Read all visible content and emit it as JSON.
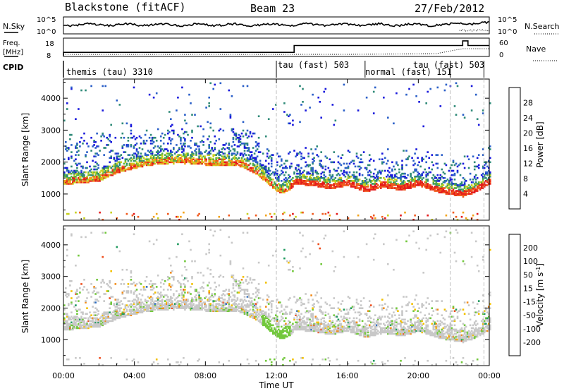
{
  "chart_data": {
    "type": "heatmap",
    "title": {
      "station": "Blackstone (fitACF)",
      "beam": "Beam 23",
      "date": "27/Feb/2012"
    },
    "xlabel": "Time UT",
    "x_ticks": [
      "00:00",
      "04:00",
      "08:00",
      "12:00",
      "16:00",
      "20:00",
      "00:00"
    ],
    "xlim_hours": [
      0,
      24
    ],
    "noise_panel": {
      "left_label": "N.Sky",
      "right_label": "N.Search",
      "left_ticks": [
        "10^5",
        "10^0"
      ],
      "right_ticks": [
        "10^5",
        "10^0"
      ]
    },
    "freq_panel": {
      "left_label_1": "Freq.",
      "left_label_2": "[MHz]",
      "left_ticks": [
        "18",
        "8"
      ],
      "right_label": "Nave",
      "right_ticks": [
        "60",
        "0"
      ],
      "freq_mhz_steps": [
        [
          0,
          10.2
        ],
        [
          13.0,
          14.6
        ],
        [
          22.5,
          17.6
        ],
        [
          22.8,
          14.6
        ]
      ]
    },
    "cpid_panel": {
      "label": "CPID",
      "modes": [
        {
          "label": "themis (tau) 3310",
          "start_h": 0.0
        },
        {
          "label": "tau (fast) 503",
          "start_h": 12.0
        },
        {
          "label": "normal (fast) 151",
          "start_h": 17.0
        },
        {
          "label": "tau (fast) 503",
          "start_h": 21.8
        }
      ]
    },
    "range_axis": {
      "ylabel": "Slant Range [km]",
      "ylim_km": [
        180,
        4600
      ],
      "y_ticks": [
        1000,
        2000,
        3000,
        4000
      ]
    },
    "power_panel": {
      "colorbar_label": "Power [dB]",
      "cbar_ticks": [
        4,
        8,
        12,
        16,
        20,
        24,
        28
      ],
      "clim": [
        0,
        32
      ],
      "colors": [
        "#1a1adc",
        "#2a5fc8",
        "#2f8a78",
        "#58b040",
        "#c8d020",
        "#f2a21a",
        "#f05a1e",
        "#e41c1c"
      ]
    },
    "velocity_panel": {
      "colorbar_label": "Velocity [m s^-1]",
      "cbar_ticks": [
        "200",
        "100",
        "50",
        "15",
        "-15",
        "-50",
        "-100",
        "-200"
      ],
      "colors": [
        "#1818cc",
        "#2c6cc0",
        "#1f9a5e",
        "#72c83c",
        "#c8c8c8",
        "#f2c000",
        "#f28c1a",
        "#ee5020",
        "#e01414"
      ]
    },
    "scatter_bands": [
      {
        "name": "main",
        "points": [
          [
            0,
            1350
          ],
          [
            1,
            1380
          ],
          [
            2,
            1450
          ],
          [
            3,
            1700
          ],
          [
            4,
            1850
          ],
          [
            5,
            1950
          ],
          [
            6,
            2000
          ],
          [
            7,
            2000
          ],
          [
            8,
            1950
          ],
          [
            9,
            1950
          ],
          [
            10,
            1900
          ],
          [
            11,
            1600
          ],
          [
            11.8,
            1200
          ],
          [
            12.3,
            1050
          ],
          [
            12.8,
            1200
          ],
          [
            13,
            1350
          ],
          [
            14,
            1300
          ],
          [
            15,
            1200
          ],
          [
            16,
            1300
          ],
          [
            17,
            1100
          ],
          [
            18,
            1250
          ],
          [
            19,
            1150
          ],
          [
            20,
            1300
          ],
          [
            21,
            1100
          ],
          [
            22,
            1000
          ],
          [
            22.5,
            950
          ],
          [
            23,
            1050
          ],
          [
            24,
            1350
          ]
        ]
      }
    ]
  }
}
